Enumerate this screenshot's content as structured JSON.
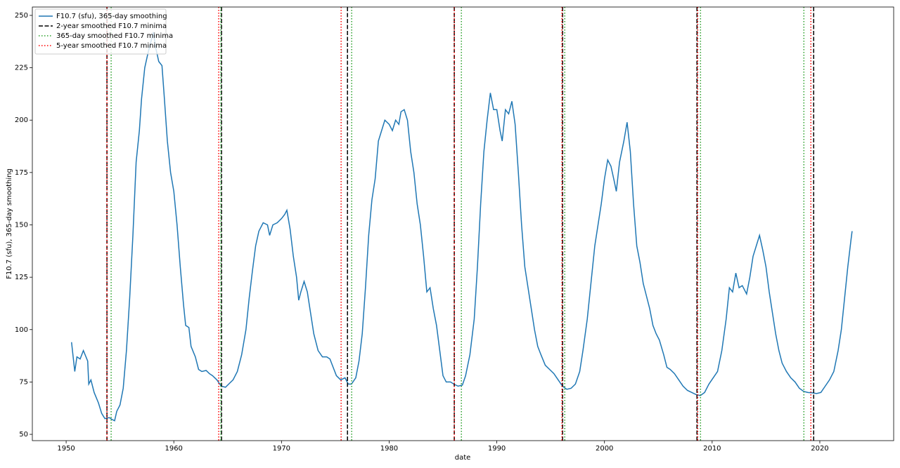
{
  "chart_data": {
    "type": "line",
    "xlabel": "date",
    "ylabel": "F10.7 (sfu), 365-day smoothing",
    "xlim": [
      1946.86,
      2026.86
    ],
    "ylim": [
      47,
      254
    ],
    "xticks": [
      1950,
      1960,
      1970,
      1980,
      1990,
      2000,
      2010,
      2020
    ],
    "yticks": [
      50,
      75,
      100,
      125,
      150,
      175,
      200,
      225,
      250
    ],
    "legend": "upper left",
    "x": [
      1950.5,
      1950.8,
      1951.0,
      1951.3,
      1951.6,
      1952.0,
      1952.1,
      1952.3,
      1952.6,
      1953.0,
      1953.3,
      1953.6,
      1954.0,
      1954.3,
      1954.5,
      1954.7,
      1955.0,
      1955.3,
      1955.6,
      1955.9,
      1956.2,
      1956.5,
      1956.8,
      1957.0,
      1957.3,
      1957.6,
      1957.9,
      1958.1,
      1958.3,
      1958.6,
      1958.9,
      1959.1,
      1959.4,
      1959.7,
      1960.0,
      1960.3,
      1960.6,
      1960.9,
      1961.1,
      1961.4,
      1961.6,
      1962.0,
      1962.3,
      1962.6,
      1963.0,
      1963.3,
      1963.6,
      1964.0,
      1964.4,
      1964.8,
      1965.1,
      1965.5,
      1965.9,
      1966.3,
      1966.7,
      1967.0,
      1967.3,
      1967.6,
      1967.9,
      1968.3,
      1968.7,
      1968.9,
      1969.2,
      1969.6,
      1970.0,
      1970.3,
      1970.5,
      1970.8,
      1971.1,
      1971.4,
      1971.6,
      1971.8,
      1972.1,
      1972.4,
      1972.7,
      1973.0,
      1973.4,
      1973.8,
      1974.2,
      1974.5,
      1974.8,
      1975.1,
      1975.5,
      1975.9,
      1976.2,
      1976.5,
      1976.9,
      1977.2,
      1977.5,
      1977.8,
      1978.1,
      1978.4,
      1978.7,
      1979.0,
      1979.3,
      1979.6,
      1980.0,
      1980.3,
      1980.6,
      1980.9,
      1981.1,
      1981.4,
      1981.7,
      1982.0,
      1982.3,
      1982.6,
      1982.9,
      1983.2,
      1983.5,
      1983.8,
      1984.1,
      1984.4,
      1984.7,
      1985.0,
      1985.3,
      1985.7,
      1986.0,
      1986.4,
      1986.8,
      1987.1,
      1987.5,
      1987.9,
      1988.2,
      1988.5,
      1988.8,
      1989.1,
      1989.4,
      1989.7,
      1990.0,
      1990.3,
      1990.5,
      1990.8,
      1991.1,
      1991.4,
      1991.7,
      1992.0,
      1992.3,
      1992.6,
      1992.9,
      1993.2,
      1993.5,
      1993.8,
      1994.1,
      1994.5,
      1994.9,
      1995.3,
      1995.7,
      1996.1,
      1996.5,
      1996.9,
      1997.3,
      1997.7,
      1998.0,
      1998.4,
      1998.8,
      1999.1,
      1999.4,
      1999.7,
      2000.0,
      2000.3,
      2000.6,
      2000.9,
      2001.1,
      2001.4,
      2001.8,
      2002.1,
      2002.4,
      2002.7,
      2003.0,
      2003.3,
      2003.6,
      2003.9,
      2004.2,
      2004.5,
      2004.8,
      2005.1,
      2005.5,
      2005.8,
      2006.1,
      2006.5,
      2006.9,
      2007.3,
      2007.7,
      2008.1,
      2008.5,
      2008.9,
      2009.3,
      2009.7,
      2010.1,
      2010.5,
      2010.9,
      2011.3,
      2011.6,
      2011.9,
      2012.2,
      2012.5,
      2012.8,
      2013.2,
      2013.5,
      2013.8,
      2014.1,
      2014.4,
      2014.7,
      2015.0,
      2015.3,
      2015.6,
      2015.9,
      2016.2,
      2016.5,
      2016.9,
      2017.3,
      2017.7,
      2018.1,
      2018.5,
      2018.9,
      2019.3,
      2019.7,
      2020.1,
      2020.5,
      2020.9,
      2021.3,
      2021.7,
      2022.0,
      2022.3,
      2022.6,
      2022.9,
      2023.0
    ],
    "series": [
      {
        "name": "F10.7 (sfu), 365-day smoothing",
        "color": "#1f77b4",
        "values": [
          94,
          80,
          87,
          86,
          90,
          85,
          74,
          76,
          70,
          65,
          60,
          57.5,
          58,
          57,
          56.5,
          61,
          64,
          72,
          90,
          115,
          145,
          180,
          195,
          210,
          225,
          232,
          238,
          242,
          235,
          228,
          226,
          212,
          190,
          175,
          166,
          150,
          130,
          112,
          102,
          101,
          92,
          87,
          81,
          80,
          80.5,
          79,
          78,
          76,
          73,
          72.5,
          74,
          76,
          80,
          88,
          100,
          115,
          128,
          140,
          147,
          151,
          150,
          145,
          150,
          151,
          153,
          155,
          157,
          148,
          135,
          125,
          114,
          118,
          123,
          118,
          108,
          98,
          90,
          87,
          87,
          86,
          82,
          78,
          76,
          77,
          74,
          74,
          77,
          85,
          98,
          120,
          145,
          162,
          172,
          190,
          195,
          200,
          198,
          195,
          200,
          198,
          204,
          205,
          200,
          185,
          175,
          160,
          150,
          135,
          118,
          120,
          110,
          102,
          90,
          78,
          75,
          75,
          74,
          73,
          73.5,
          78,
          88,
          105,
          130,
          160,
          185,
          200,
          213,
          205,
          205,
          195,
          190,
          205,
          203,
          209,
          198,
          175,
          150,
          130,
          120,
          110,
          100,
          92,
          88,
          83,
          81,
          79,
          76,
          73,
          71.5,
          72,
          74,
          80,
          90,
          105,
          125,
          140,
          150,
          160,
          172,
          181,
          178,
          171,
          166,
          180,
          190,
          199,
          185,
          160,
          140,
          132,
          122,
          116,
          110,
          102,
          98,
          95,
          88,
          82,
          81,
          79,
          76,
          73,
          71,
          70,
          69,
          68.5,
          70,
          74,
          77,
          80,
          90,
          105,
          120,
          118,
          127,
          120,
          121,
          117,
          125,
          135,
          140,
          145,
          138,
          130,
          118,
          108,
          98,
          90,
          84,
          80,
          77,
          75,
          72,
          70.5,
          70,
          69.8,
          69.5,
          70,
          73,
          76,
          80,
          90,
          100,
          115,
          130,
          143,
          147
        ]
      }
    ],
    "vlines": [
      {
        "name": "2-year smoothed F10.7 minima",
        "color": "#000000",
        "style": "dashed",
        "values": [
          1953.79,
          1964.43,
          1976.13,
          1986.05,
          1996.11,
          2008.59,
          2019.43
        ]
      },
      {
        "name": "365-day smoothed F10.7 minima",
        "color": "#2ca02c",
        "style": "dotted",
        "values": [
          1954.18,
          1964.37,
          1976.52,
          1986.71,
          1996.31,
          2008.92,
          2018.52
        ]
      },
      {
        "name": "5-year smoothed F10.7 minima",
        "color": "#ff0000",
        "style": "dotted",
        "values": [
          1953.79,
          1964.17,
          1975.54,
          1986.05,
          1996.05,
          2008.66,
          2019.17
        ]
      }
    ]
  }
}
